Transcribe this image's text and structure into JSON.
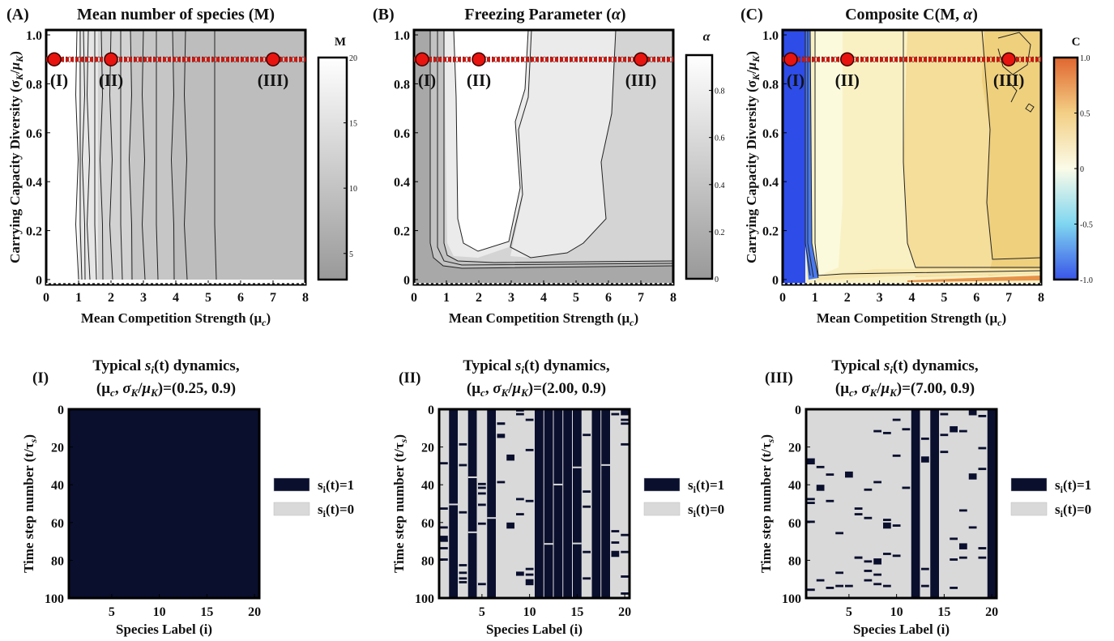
{
  "panels": [
    {
      "id": "A",
      "label": "(A)",
      "title": "Mean number of species (M)",
      "xlabel": "Mean Competition Strength (μ",
      "xlabel_sub": "c",
      "ylabel": "Carrying Capacity Diversity (σ",
      "colorbar": {
        "label": "M",
        "ticks": [
          "20",
          "15",
          "10",
          "5"
        ],
        "tick_values": [
          20,
          15,
          10,
          5
        ],
        "range": [
          3,
          20
        ],
        "colors": [
          "#999999",
          "#ffffff"
        ]
      },
      "fill": "#bdbdbd",
      "low_region_color": "#ffffff",
      "contour_x": [
        0.95,
        1.05,
        1.15,
        1.3,
        1.5,
        1.7,
        2.0,
        2.3,
        2.6,
        3.0,
        3.4,
        3.9,
        4.3,
        5.2
      ],
      "points": [
        {
          "x": 0.25,
          "y": 0.9,
          "label": "(I)"
        },
        {
          "x": 2.0,
          "y": 0.9,
          "label": "(II)"
        },
        {
          "x": 7.0,
          "y": 0.9,
          "label": "(III)"
        }
      ]
    },
    {
      "id": "B",
      "label": "(B)",
      "title": "Freezing Parameter (α)",
      "xlabel": "Mean Competition Strength (μ",
      "xlabel_sub": "c",
      "ylabel": "",
      "colorbar": {
        "label": "α",
        "ticks": [
          "0.8",
          "0.6",
          "0.4",
          "0.2",
          "0"
        ],
        "tick_values": [
          0.8,
          0.6,
          0.4,
          0.2,
          0
        ],
        "range": [
          0,
          0.95
        ],
        "colors": [
          "#999999",
          "#ffffff"
        ]
      },
      "fill": "#d4d4d4",
      "points": [
        {
          "x": 0.25,
          "y": 0.9,
          "label": "(I)"
        },
        {
          "x": 2.0,
          "y": 0.9,
          "label": "(II)"
        },
        {
          "x": 7.0,
          "y": 0.9,
          "label": "(III)"
        }
      ]
    },
    {
      "id": "C",
      "label": "(C)",
      "title": "Composite C(M, α)",
      "xlabel": "Mean Competition Strength (μ",
      "xlabel_sub": "c",
      "ylabel": "Carrying Capacity Diversity (σ",
      "colorbar": {
        "label": "C",
        "ticks": [
          "1.0",
          "0.5",
          "0",
          "-0.5",
          "-1.0"
        ],
        "tick_values": [
          1,
          0.5,
          0,
          -0.5,
          -1
        ],
        "range": [
          -1,
          1
        ],
        "colors": [
          "#3a55e8",
          "#7fd6f0",
          "#fbfbe8",
          "#f3cf85",
          "#e06630"
        ]
      },
      "points": [
        {
          "x": 0.25,
          "y": 0.9,
          "label": "(I)"
        },
        {
          "x": 2.0,
          "y": 0.9,
          "label": "(II)"
        },
        {
          "x": 7.0,
          "y": 0.9,
          "label": "(III)"
        }
      ]
    }
  ],
  "axes_top": {
    "x_ticks": [
      0,
      1,
      2,
      3,
      4,
      5,
      6,
      7,
      8
    ],
    "y_ticks": [
      0,
      0.2,
      0.4,
      0.6,
      0.8,
      1.0
    ],
    "y_tick_labels": [
      "0",
      "0.2",
      "0.4",
      "0.6",
      "0.8",
      "1.0"
    ],
    "xlim": [
      0,
      8
    ],
    "ylim": [
      -0.02,
      1.02
    ]
  },
  "dynamics": [
    {
      "label": "(I)",
      "title1": "Typical ",
      "title1_var": "s",
      "title1_sub": "i",
      "title1_rest": "(t) dynamics,",
      "title2": "(μ",
      "title2_value": ")=(0.25, 0.9)",
      "mu_c": 0.25,
      "sigma_ratio": 0.9,
      "mode": "all-on"
    },
    {
      "label": "(II)",
      "title1": "Typical ",
      "title1_var": "s",
      "title1_sub": "i",
      "title1_rest": "(t) dynamics,",
      "title2": "(μ",
      "title2_value": ")=(2.00, 0.9)",
      "mu_c": 2.0,
      "sigma_ratio": 0.9,
      "mode": "mixed",
      "always_on_species": [
        2,
        4,
        6,
        11,
        12,
        13,
        14,
        15,
        17,
        18
      ],
      "sparse_species": [
        1,
        3,
        5,
        7,
        8,
        9,
        10,
        16,
        19,
        20
      ]
    },
    {
      "label": "(III)",
      "title1": "Typical ",
      "title1_var": "s",
      "title1_sub": "i",
      "title1_rest": "(t) dynamics,",
      "title2": "(μ",
      "title2_value": ")=(7.00, 0.9)",
      "mu_c": 7.0,
      "sigma_ratio": 0.9,
      "mode": "sparse",
      "always_on_species": [
        12,
        14,
        20
      ]
    }
  ],
  "axes_bottom": {
    "xlabel": "Species Label (i)",
    "ylabel": "Time step number (t/τ",
    "ylabel_sub": "s",
    "x_ticks": [
      5,
      10,
      15,
      20
    ],
    "y_ticks": [
      0,
      20,
      40,
      60,
      80,
      100
    ],
    "species_count": 20,
    "time_steps": 100
  },
  "legend": [
    {
      "label": "s",
      "sub": "i",
      "rest": "(t)=1",
      "color": "#0a0f2e"
    },
    {
      "label": "s",
      "sub": "i",
      "rest": "(t)=0",
      "color": "#d9d9d9"
    }
  ],
  "colors": {
    "marker": "#e8140f",
    "marker_stroke": "#3a0000",
    "on": "#0a0f2e",
    "off": "#d9d9d9"
  }
}
